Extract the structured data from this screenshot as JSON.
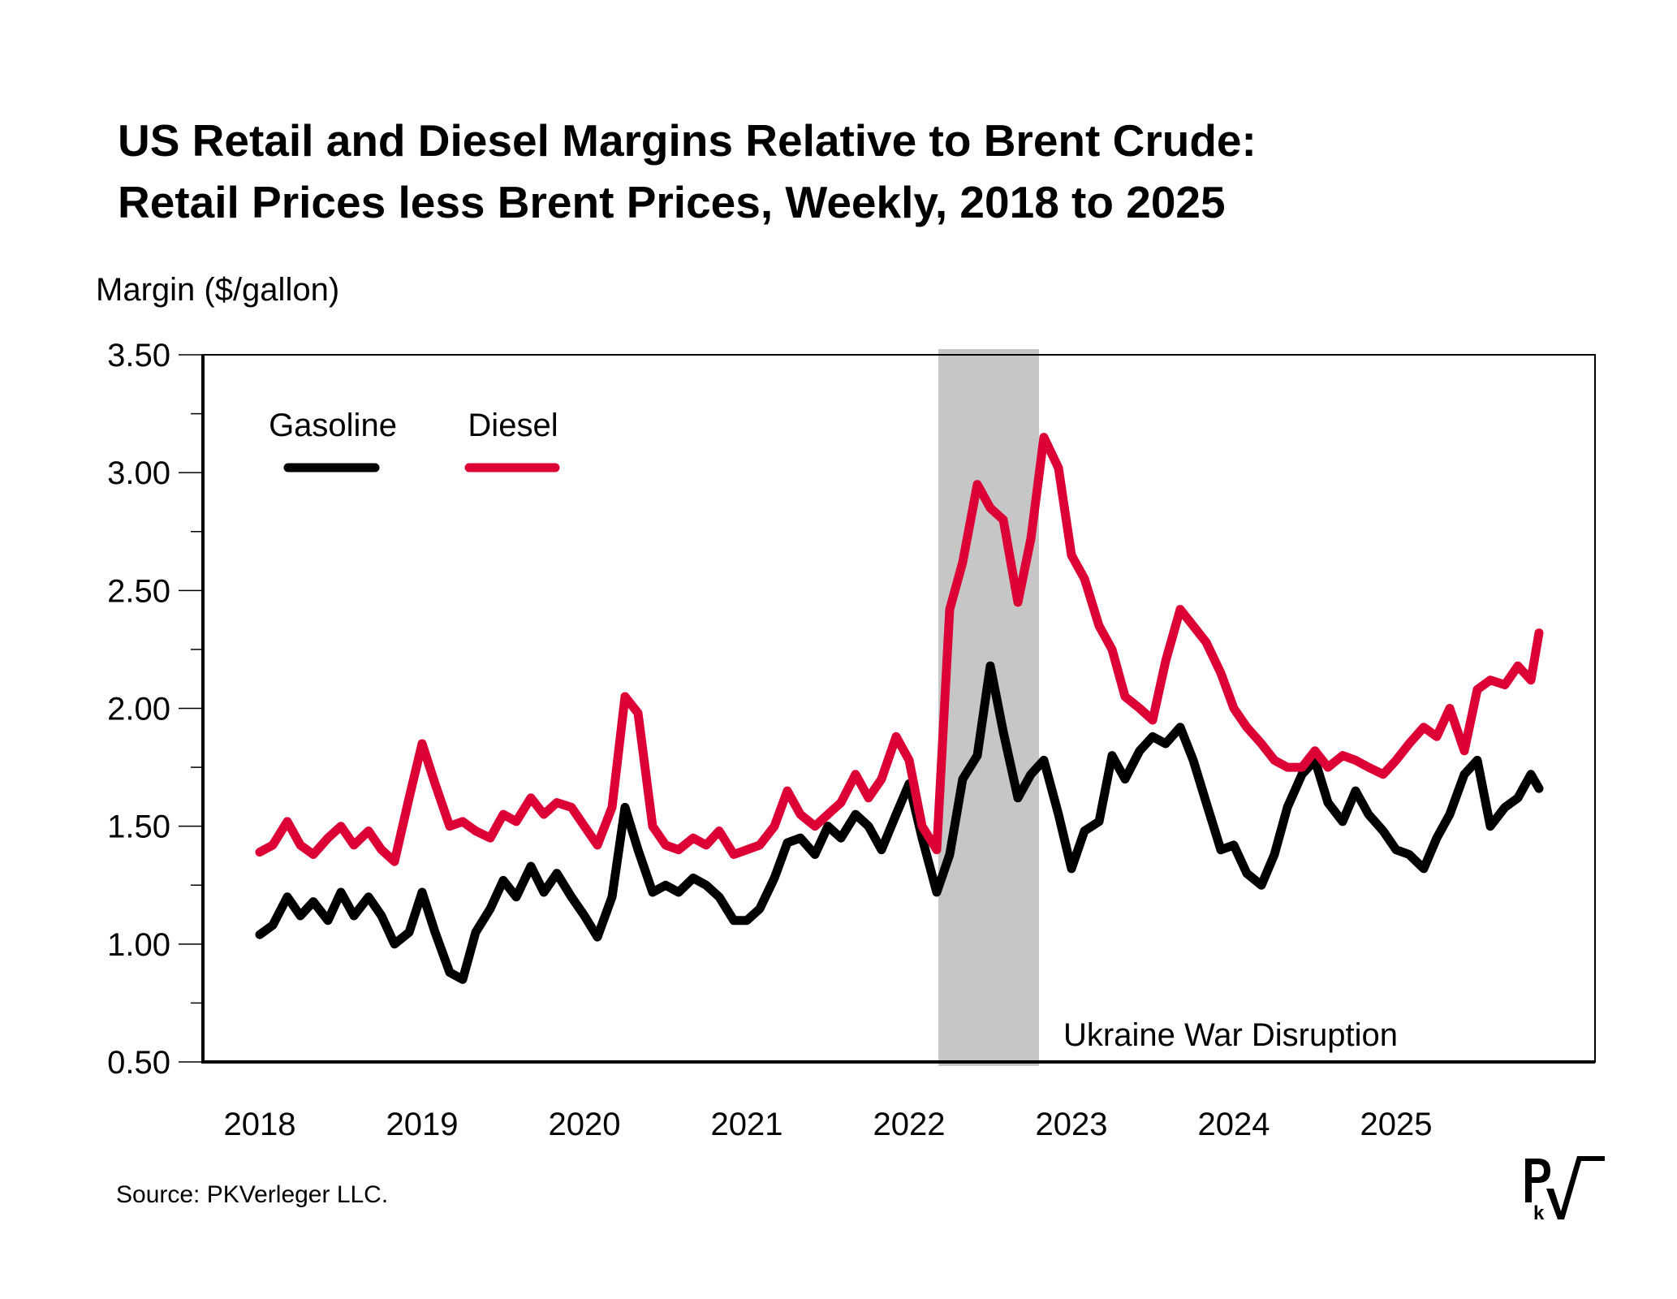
{
  "title_lines": [
    "US Retail and Diesel Margins Relative to Brent Crude:",
    "Retail Prices less Brent Prices, Weekly, 2018 to 2025"
  ],
  "source": "Source: PKVerleger LLC.",
  "logo_text": "PkV",
  "chart_data": {
    "type": "line",
    "title": "US Retail and Diesel Margins Relative to Brent Crude: Retail Prices less Brent Prices, Weekly, 2018 to 2025",
    "xlabel": "",
    "ylabel": "Margin ($/gallon)",
    "ylim": [
      0.5,
      3.5
    ],
    "yticks": [
      "0.50",
      "1.00",
      "1.50",
      "2.00",
      "2.50",
      "3.00",
      "3.50"
    ],
    "xlim": [
      2018.0,
      2026.0
    ],
    "xticks": [
      "2018",
      "2019",
      "2020",
      "2021",
      "2022",
      "2023",
      "2024",
      "2025"
    ],
    "grid": false,
    "legend": "top-left",
    "shaded_region": {
      "label": "Ukraine War Disruption",
      "x_start": 2022.18,
      "x_end": 2022.8,
      "color": "#c6c6c6"
    },
    "x": [
      2018.0,
      2018.08,
      2018.17,
      2018.25,
      2018.33,
      2018.42,
      2018.5,
      2018.58,
      2018.67,
      2018.75,
      2018.83,
      2018.92,
      2019.0,
      2019.08,
      2019.17,
      2019.25,
      2019.33,
      2019.42,
      2019.5,
      2019.58,
      2019.67,
      2019.75,
      2019.83,
      2019.92,
      2020.0,
      2020.08,
      2020.17,
      2020.25,
      2020.33,
      2020.42,
      2020.5,
      2020.58,
      2020.67,
      2020.75,
      2020.83,
      2020.92,
      2021.0,
      2021.08,
      2021.17,
      2021.25,
      2021.33,
      2021.42,
      2021.5,
      2021.58,
      2021.67,
      2021.75,
      2021.83,
      2021.92,
      2022.0,
      2022.08,
      2022.17,
      2022.25,
      2022.33,
      2022.42,
      2022.5,
      2022.58,
      2022.67,
      2022.75,
      2022.83,
      2022.92,
      2023.0,
      2023.08,
      2023.17,
      2023.25,
      2023.33,
      2023.42,
      2023.5,
      2023.58,
      2023.67,
      2023.75,
      2023.83,
      2023.92,
      2024.0,
      2024.08,
      2024.17,
      2024.25,
      2024.33,
      2024.42,
      2024.5,
      2024.58,
      2024.67,
      2024.75,
      2024.83,
      2024.92,
      2025.0,
      2025.08,
      2025.17,
      2025.25,
      2025.33,
      2025.42,
      2025.5,
      2025.58,
      2025.67,
      2025.75,
      2025.83,
      2025.88
    ],
    "series": [
      {
        "name": "Gasoline",
        "color": "#000000",
        "values": [
          1.04,
          1.08,
          1.2,
          1.12,
          1.18,
          1.1,
          1.22,
          1.12,
          1.2,
          1.12,
          1.0,
          1.05,
          1.22,
          1.05,
          0.88,
          0.85,
          1.05,
          1.15,
          1.27,
          1.2,
          1.33,
          1.22,
          1.3,
          1.2,
          1.12,
          1.03,
          1.2,
          1.58,
          1.4,
          1.22,
          1.25,
          1.22,
          1.28,
          1.25,
          1.2,
          1.1,
          1.1,
          1.15,
          1.28,
          1.43,
          1.45,
          1.38,
          1.5,
          1.45,
          1.55,
          1.5,
          1.4,
          1.55,
          1.68,
          1.45,
          1.22,
          1.38,
          1.7,
          1.8,
          2.18,
          1.9,
          1.62,
          1.72,
          1.78,
          1.55,
          1.32,
          1.48,
          1.52,
          1.8,
          1.7,
          1.82,
          1.88,
          1.85,
          1.92,
          1.78,
          1.6,
          1.4,
          1.42,
          1.3,
          1.25,
          1.38,
          1.58,
          1.72,
          1.78,
          1.6,
          1.52,
          1.65,
          1.55,
          1.48,
          1.4,
          1.38,
          1.32,
          1.45,
          1.55,
          1.72,
          1.78,
          1.5,
          1.58,
          1.62,
          1.72,
          1.66
        ]
      },
      {
        "name": "Diesel",
        "color": "#dc0037",
        "values": [
          1.39,
          1.42,
          1.52,
          1.42,
          1.38,
          1.45,
          1.5,
          1.42,
          1.48,
          1.4,
          1.35,
          1.62,
          1.85,
          1.68,
          1.5,
          1.52,
          1.48,
          1.45,
          1.55,
          1.52,
          1.62,
          1.55,
          1.6,
          1.58,
          1.5,
          1.42,
          1.58,
          2.05,
          1.98,
          1.5,
          1.42,
          1.4,
          1.45,
          1.42,
          1.48,
          1.38,
          1.4,
          1.42,
          1.5,
          1.65,
          1.55,
          1.5,
          1.55,
          1.6,
          1.72,
          1.62,
          1.7,
          1.88,
          1.78,
          1.5,
          1.4,
          2.42,
          2.62,
          2.95,
          2.85,
          2.8,
          2.45,
          2.72,
          3.15,
          3.02,
          2.65,
          2.55,
          2.35,
          2.25,
          2.05,
          2.0,
          1.95,
          2.2,
          2.42,
          2.35,
          2.28,
          2.15,
          2.0,
          1.92,
          1.85,
          1.78,
          1.75,
          1.75,
          1.82,
          1.75,
          1.8,
          1.78,
          1.75,
          1.72,
          1.78,
          1.85,
          1.92,
          1.88,
          2.0,
          1.82,
          2.08,
          2.12,
          2.1,
          2.18,
          2.12,
          2.32
        ]
      }
    ]
  }
}
